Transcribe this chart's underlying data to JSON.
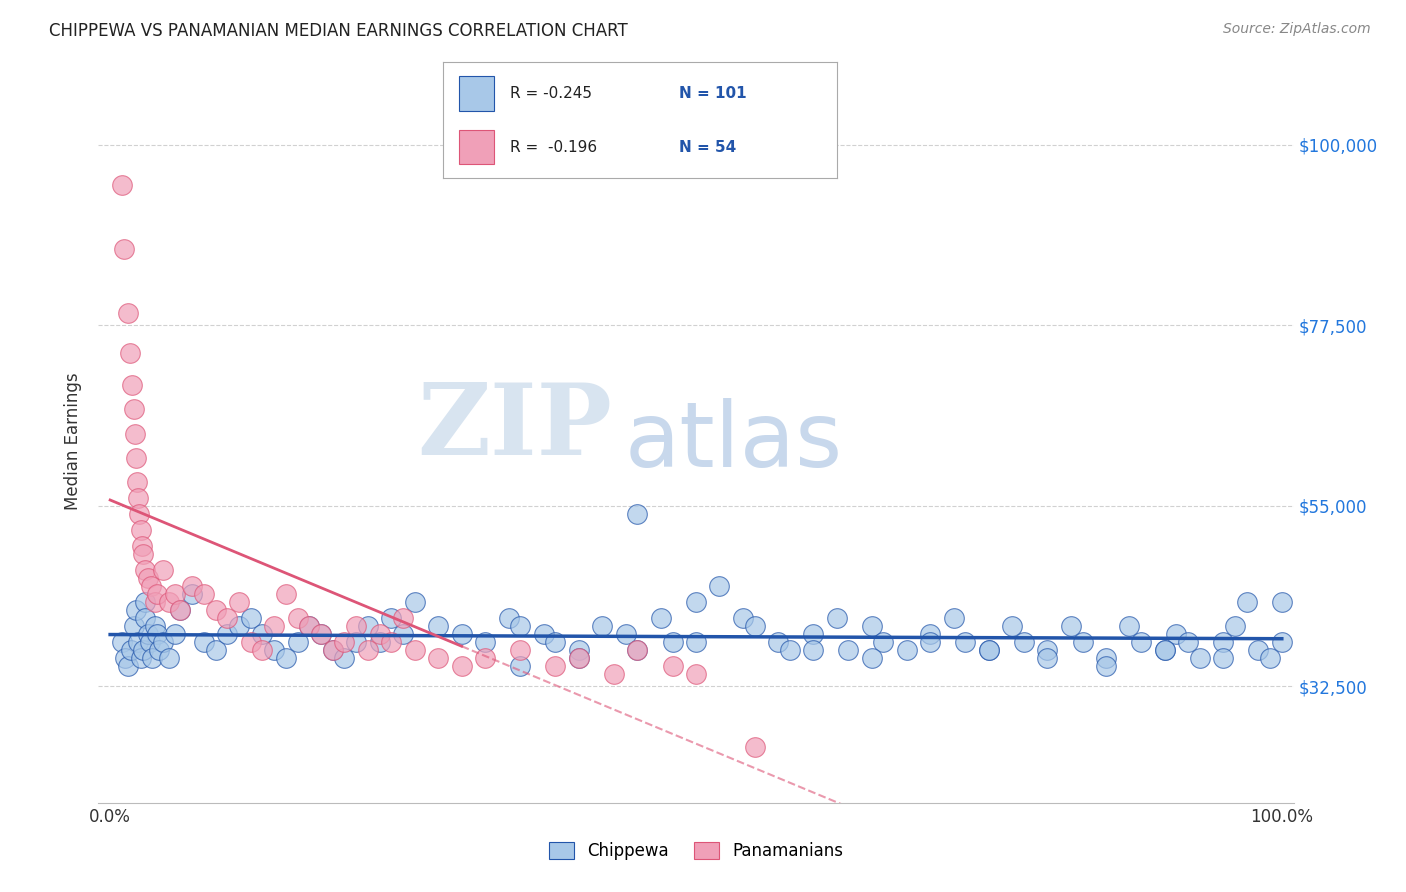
{
  "title": "CHIPPEWA VS PANAMANIAN MEDIAN EARNINGS CORRELATION CHART",
  "source": "Source: ZipAtlas.com",
  "ylabel": "Median Earnings",
  "legend_label1": "Chippewa",
  "legend_label2": "Panamanians",
  "r1": "-0.245",
  "n1": "101",
  "r2": "-0.196",
  "n2": "54",
  "color_chippewa": "#a8c8e8",
  "color_panama": "#f0a0b8",
  "trendline_chippewa": "#2255aa",
  "trendline_panama": "#dd5577",
  "ytick_labels": [
    "$32,500",
    "$55,000",
    "$77,500",
    "$100,000"
  ],
  "ytick_values": [
    32500,
    55000,
    77500,
    100000
  ],
  "ytick_color": "#2277dd",
  "ymin": 18000,
  "ymax": 108000,
  "xmin": -1,
  "xmax": 101,
  "watermark_zip": "ZIP",
  "watermark_atlas": "atlas",
  "watermark_color": "#d8e4f0",
  "chippewa_x": [
    1.0,
    1.3,
    1.5,
    1.8,
    2.0,
    2.2,
    2.4,
    2.6,
    2.8,
    3.0,
    3.0,
    3.2,
    3.4,
    3.6,
    3.8,
    4.0,
    4.2,
    4.5,
    5.0,
    5.5,
    6.0,
    7.0,
    8.0,
    9.0,
    10.0,
    11.0,
    12.0,
    13.0,
    14.0,
    15.0,
    16.0,
    17.0,
    18.0,
    19.0,
    20.0,
    21.0,
    22.0,
    23.0,
    24.0,
    25.0,
    26.0,
    28.0,
    30.0,
    32.0,
    34.0,
    35.0,
    37.0,
    38.0,
    40.0,
    42.0,
    44.0,
    45.0,
    47.0,
    48.0,
    50.0,
    52.0,
    54.0,
    55.0,
    57.0,
    58.0,
    60.0,
    62.0,
    63.0,
    65.0,
    66.0,
    68.0,
    70.0,
    72.0,
    73.0,
    75.0,
    77.0,
    78.0,
    80.0,
    82.0,
    83.0,
    85.0,
    87.0,
    88.0,
    90.0,
    91.0,
    92.0,
    93.0,
    95.0,
    96.0,
    97.0,
    98.0,
    99.0,
    100.0,
    50.0,
    45.0,
    40.0,
    35.0,
    60.0,
    65.0,
    70.0,
    75.0,
    80.0,
    85.0,
    90.0,
    95.0,
    100.0
  ],
  "chippewa_y": [
    38000,
    36000,
    35000,
    37000,
    40000,
    42000,
    38000,
    36000,
    37000,
    43000,
    41000,
    39000,
    38000,
    36000,
    40000,
    39000,
    37000,
    38000,
    36000,
    39000,
    42000,
    44000,
    38000,
    37000,
    39000,
    40000,
    41000,
    39000,
    37000,
    36000,
    38000,
    40000,
    39000,
    37000,
    36000,
    38000,
    40000,
    38000,
    41000,
    39000,
    43000,
    40000,
    39000,
    38000,
    41000,
    40000,
    39000,
    38000,
    37000,
    40000,
    39000,
    54000,
    41000,
    38000,
    43000,
    45000,
    41000,
    40000,
    38000,
    37000,
    39000,
    41000,
    37000,
    40000,
    38000,
    37000,
    39000,
    41000,
    38000,
    37000,
    40000,
    38000,
    37000,
    40000,
    38000,
    36000,
    40000,
    38000,
    37000,
    39000,
    38000,
    36000,
    38000,
    40000,
    43000,
    37000,
    36000,
    43000,
    38000,
    37000,
    36000,
    35000,
    37000,
    36000,
    38000,
    37000,
    36000,
    35000,
    37000,
    36000,
    38000
  ],
  "panama_x": [
    1.0,
    1.2,
    1.5,
    1.7,
    1.9,
    2.0,
    2.1,
    2.2,
    2.3,
    2.4,
    2.5,
    2.6,
    2.7,
    2.8,
    3.0,
    3.2,
    3.5,
    3.8,
    4.0,
    4.5,
    5.0,
    5.5,
    6.0,
    7.0,
    8.0,
    9.0,
    10.0,
    11.0,
    12.0,
    13.0,
    14.0,
    15.0,
    16.0,
    17.0,
    18.0,
    19.0,
    20.0,
    21.0,
    22.0,
    23.0,
    24.0,
    25.0,
    26.0,
    28.0,
    30.0,
    32.0,
    35.0,
    38.0,
    40.0,
    43.0,
    45.0,
    48.0,
    50.0,
    55.0
  ],
  "panama_y": [
    95000,
    87000,
    79000,
    74000,
    70000,
    67000,
    64000,
    61000,
    58000,
    56000,
    54000,
    52000,
    50000,
    49000,
    47000,
    46000,
    45000,
    43000,
    44000,
    47000,
    43000,
    44000,
    42000,
    45000,
    44000,
    42000,
    41000,
    43000,
    38000,
    37000,
    40000,
    44000,
    41000,
    40000,
    39000,
    37000,
    38000,
    40000,
    37000,
    39000,
    38000,
    41000,
    37000,
    36000,
    35000,
    36000,
    37000,
    35000,
    36000,
    34000,
    37000,
    35000,
    34000,
    25000
  ]
}
